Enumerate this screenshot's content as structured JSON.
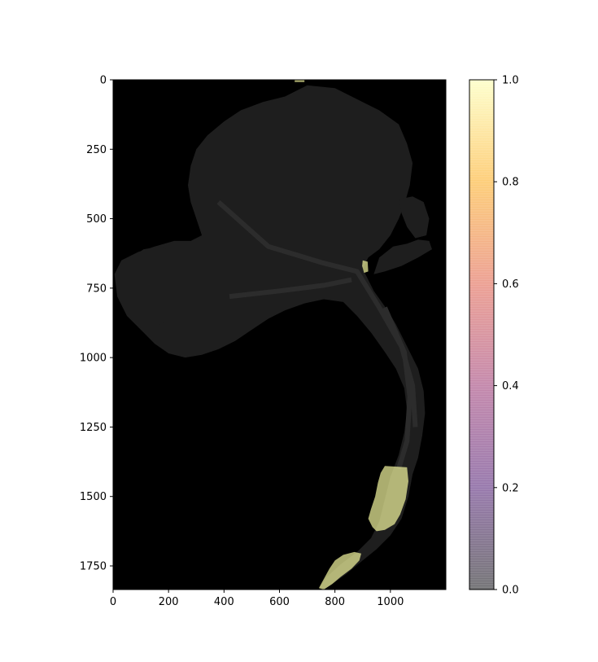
{
  "chart_data": {
    "type": "heatmap",
    "title": "",
    "xlabel": "",
    "ylabel": "",
    "xlim": [
      0,
      1200
    ],
    "ylim": [
      1835,
      0
    ],
    "x_ticks": [
      0,
      200,
      400,
      600,
      800,
      1000
    ],
    "x_tick_labels": [
      "0",
      "200",
      "400",
      "600",
      "800",
      "1000"
    ],
    "y_ticks": [
      0,
      250,
      500,
      750,
      1000,
      1250,
      1500,
      1750
    ],
    "y_tick_labels": [
      "0",
      "250",
      "500",
      "750",
      "1000",
      "1250",
      "1500",
      "1750"
    ],
    "grid": false,
    "background": "#000000",
    "glacier_color": "#1e1e1e",
    "colorbar": {
      "vmin": 0.0,
      "vmax": 1.0,
      "ticks": [
        0.0,
        0.2,
        0.4,
        0.6,
        0.8,
        1.0
      ],
      "tick_labels": [
        "0.0",
        "0.2",
        "0.4",
        "0.6",
        "0.8",
        "1.0"
      ],
      "colormap": "inferno",
      "alpha": 0.4,
      "stops": [
        "#000004",
        "#420a68",
        "#932667",
        "#dd513a",
        "#fca50a",
        "#fcffa4"
      ]
    },
    "overlay_regions": [
      {
        "name": "terminus-upper",
        "value": 1.0,
        "points": [
          [
            980,
            1390
          ],
          [
            1060,
            1395
          ],
          [
            1065,
            1445
          ],
          [
            1055,
            1510
          ],
          [
            1035,
            1565
          ],
          [
            1015,
            1600
          ],
          [
            980,
            1620
          ],
          [
            950,
            1625
          ],
          [
            935,
            1610
          ],
          [
            920,
            1580
          ],
          [
            930,
            1545
          ],
          [
            945,
            1500
          ],
          [
            955,
            1450
          ],
          [
            965,
            1415
          ]
        ]
      },
      {
        "name": "terminus-lower",
        "value": 1.0,
        "points": [
          [
            870,
            1700
          ],
          [
            895,
            1705
          ],
          [
            888,
            1730
          ],
          [
            860,
            1760
          ],
          [
            820,
            1790
          ],
          [
            790,
            1815
          ],
          [
            760,
            1835
          ],
          [
            742,
            1830
          ],
          [
            758,
            1800
          ],
          [
            780,
            1760
          ],
          [
            800,
            1730
          ],
          [
            830,
            1710
          ]
        ]
      },
      {
        "name": "top-edge",
        "value": 1.0,
        "points": [
          [
            655,
            0
          ],
          [
            690,
            0
          ],
          [
            690,
            8
          ],
          [
            655,
            8
          ]
        ]
      },
      {
        "name": "side-branch",
        "value": 1.0,
        "points": [
          [
            900,
            650
          ],
          [
            918,
            655
          ],
          [
            920,
            690
          ],
          [
            905,
            695
          ],
          [
            898,
            670
          ]
        ]
      }
    ]
  }
}
